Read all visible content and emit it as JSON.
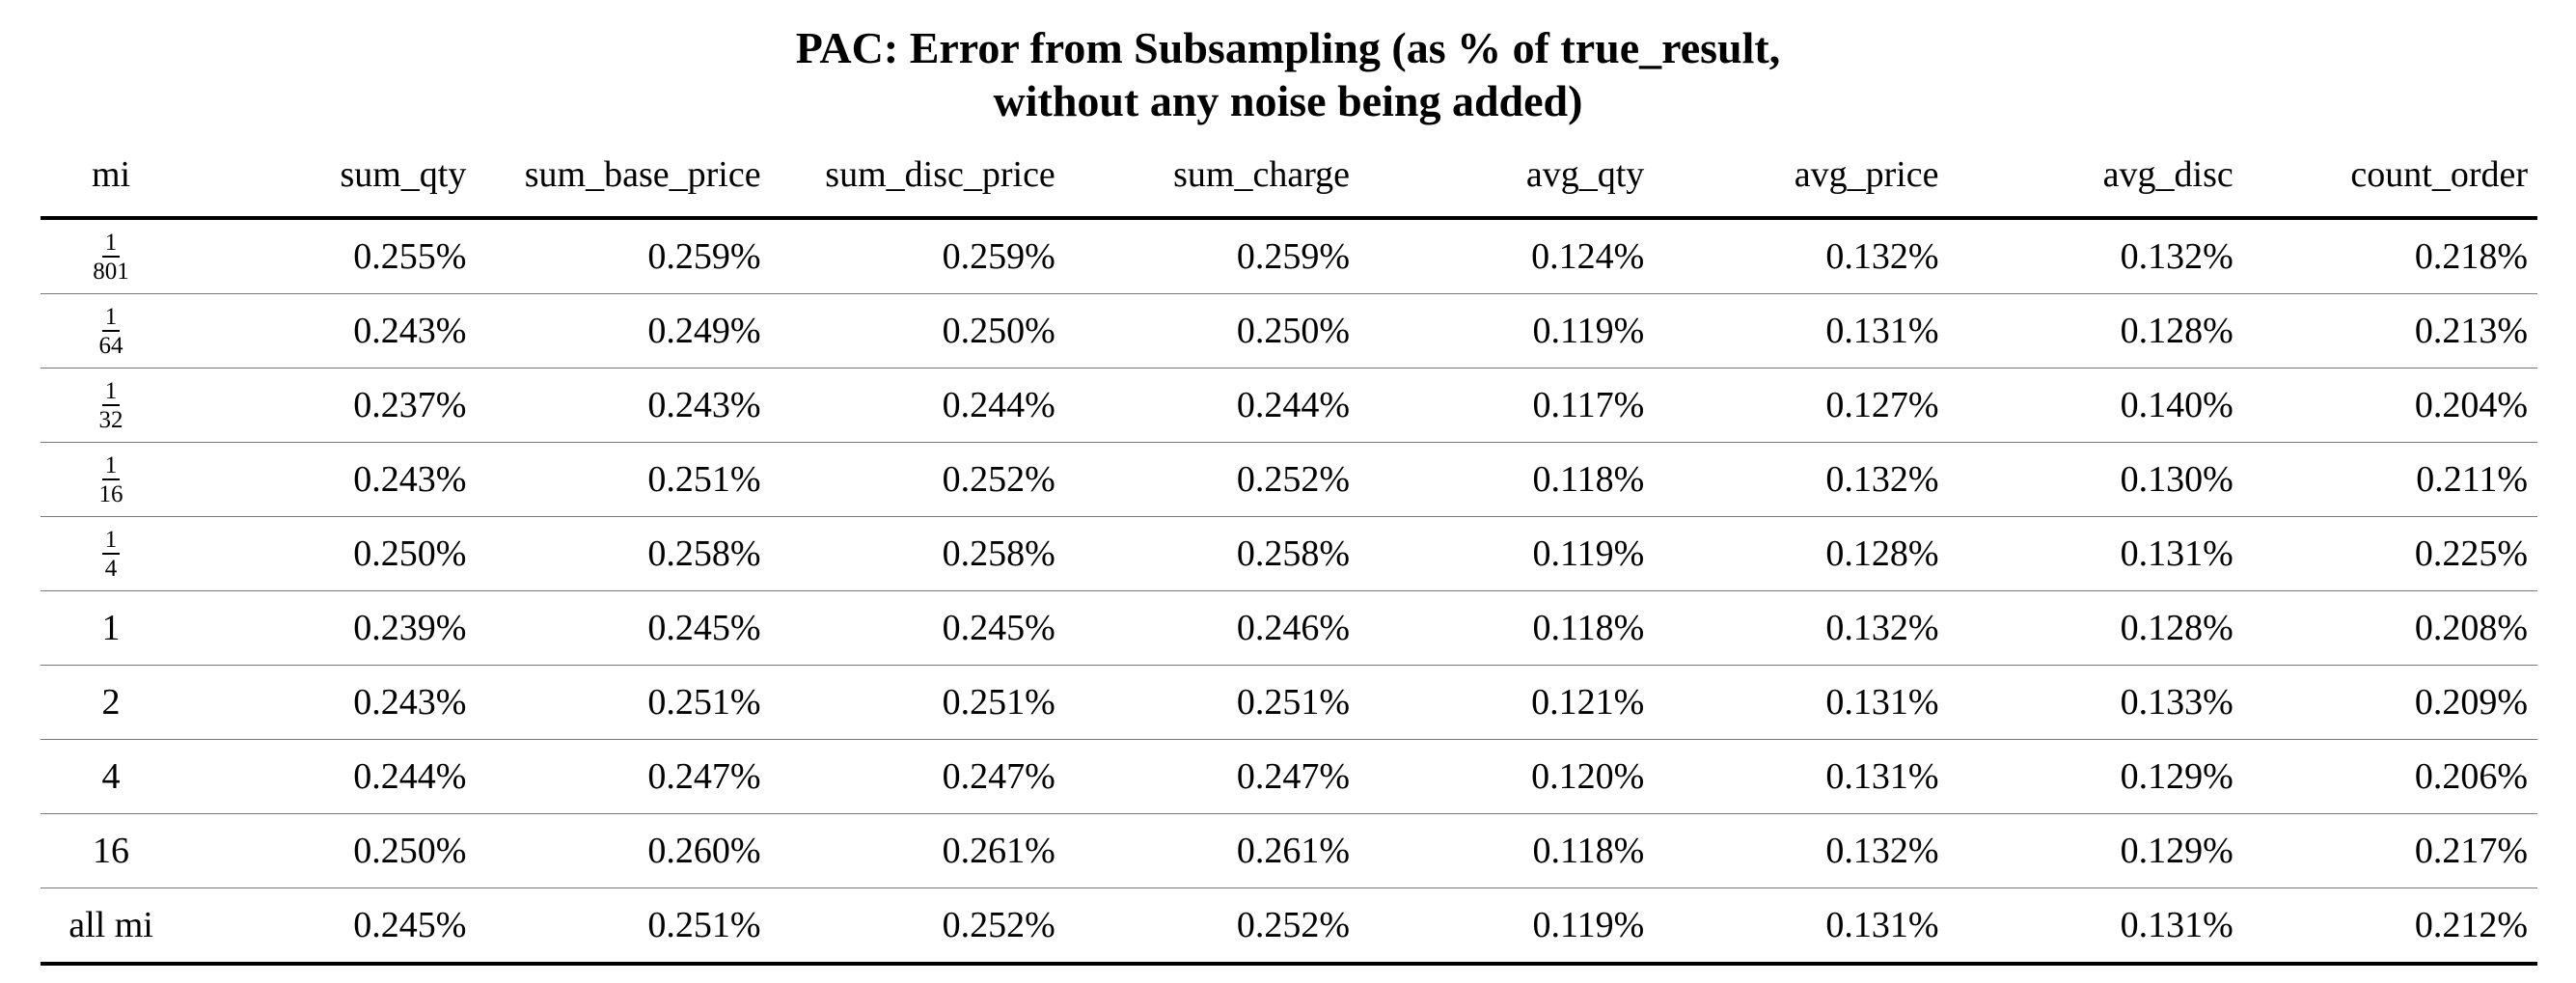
{
  "title": {
    "line1": "PAC: Error from Subsampling (as % of true_result,",
    "line2": "without any noise being added)"
  },
  "table": {
    "headers": [
      "mi",
      "sum_qty",
      "sum_base_price",
      "sum_disc_price",
      "sum_charge",
      "avg_qty",
      "avg_price",
      "avg_disc",
      "count_order"
    ],
    "rows": [
      {
        "mi": {
          "type": "fraction",
          "num": "1",
          "den": "801"
        },
        "values": [
          "0.255%",
          "0.259%",
          "0.259%",
          "0.259%",
          "0.124%",
          "0.132%",
          "0.132%",
          "0.218%"
        ]
      },
      {
        "mi": {
          "type": "fraction",
          "num": "1",
          "den": "64"
        },
        "values": [
          "0.243%",
          "0.249%",
          "0.250%",
          "0.250%",
          "0.119%",
          "0.131%",
          "0.128%",
          "0.213%"
        ]
      },
      {
        "mi": {
          "type": "fraction",
          "num": "1",
          "den": "32"
        },
        "values": [
          "0.237%",
          "0.243%",
          "0.244%",
          "0.244%",
          "0.117%",
          "0.127%",
          "0.140%",
          "0.204%"
        ]
      },
      {
        "mi": {
          "type": "fraction",
          "num": "1",
          "den": "16"
        },
        "values": [
          "0.243%",
          "0.251%",
          "0.252%",
          "0.252%",
          "0.118%",
          "0.132%",
          "0.130%",
          "0.211%"
        ]
      },
      {
        "mi": {
          "type": "fraction",
          "num": "1",
          "den": "4"
        },
        "values": [
          "0.250%",
          "0.258%",
          "0.258%",
          "0.258%",
          "0.119%",
          "0.128%",
          "0.131%",
          "0.225%"
        ]
      },
      {
        "mi": {
          "type": "text",
          "text": "1"
        },
        "values": [
          "0.239%",
          "0.245%",
          "0.245%",
          "0.246%",
          "0.118%",
          "0.132%",
          "0.128%",
          "0.208%"
        ]
      },
      {
        "mi": {
          "type": "text",
          "text": "2"
        },
        "values": [
          "0.243%",
          "0.251%",
          "0.251%",
          "0.251%",
          "0.121%",
          "0.131%",
          "0.133%",
          "0.209%"
        ]
      },
      {
        "mi": {
          "type": "text",
          "text": "4"
        },
        "values": [
          "0.244%",
          "0.247%",
          "0.247%",
          "0.247%",
          "0.120%",
          "0.131%",
          "0.129%",
          "0.206%"
        ]
      },
      {
        "mi": {
          "type": "text",
          "text": "16"
        },
        "values": [
          "0.250%",
          "0.260%",
          "0.261%",
          "0.261%",
          "0.118%",
          "0.132%",
          "0.129%",
          "0.217%"
        ]
      },
      {
        "mi": {
          "type": "text",
          "text": "all mi"
        },
        "values": [
          "0.245%",
          "0.251%",
          "0.252%",
          "0.252%",
          "0.119%",
          "0.131%",
          "0.131%",
          "0.212%"
        ]
      }
    ]
  }
}
